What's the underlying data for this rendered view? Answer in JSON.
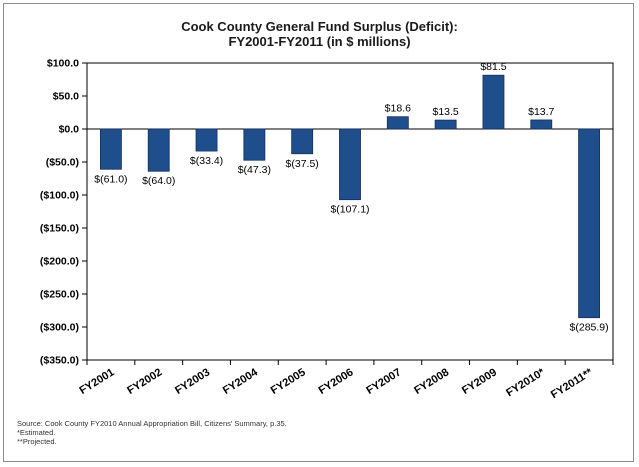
{
  "chart_data": {
    "type": "bar",
    "title_line1": "Cook County General Fund Surplus (Deficit):",
    "title_line2": "FY2001-FY2011 (in $ millions)",
    "xlabel": "",
    "ylabel": "",
    "categories": [
      "FY2001",
      "FY2002",
      "FY2003",
      "FY2004",
      "FY2005",
      "FY2006",
      "FY2007",
      "FY2008",
      "FY2009",
      "FY2010*",
      "FY2011**"
    ],
    "values": [
      -61.0,
      -64.0,
      -33.4,
      -47.3,
      -37.5,
      -107.1,
      18.6,
      13.5,
      81.5,
      13.7,
      -285.9
    ],
    "value_labels": [
      "$(61.0)",
      "$(64.0)",
      "$(33.4)",
      "$(47.3)",
      "$(37.5)",
      "$(107.1)",
      "$18.6",
      "$13.5",
      "$81.5",
      "$13.7",
      "$(285.9)"
    ],
    "ylim": [
      -350,
      100
    ],
    "yticks": [
      100,
      50,
      0,
      -50,
      -100,
      -150,
      -200,
      -250,
      -300,
      -350
    ],
    "ytick_labels": [
      "$100.0",
      "$50.0",
      "$0.0",
      "($50.0)",
      "($100.0)",
      "($150.0)",
      "($200.0)",
      "($250.0)",
      "($300.0)",
      "($350.0)"
    ],
    "grid": false,
    "legend": "none",
    "bar_color": "#1f4e8c"
  },
  "notes": {
    "source": "Source: Cook County FY2010 Annual Appropriation Bill, Citizens' Summary, p.35.",
    "estimated": "*Estimated.",
    "projected": "**Projected."
  }
}
